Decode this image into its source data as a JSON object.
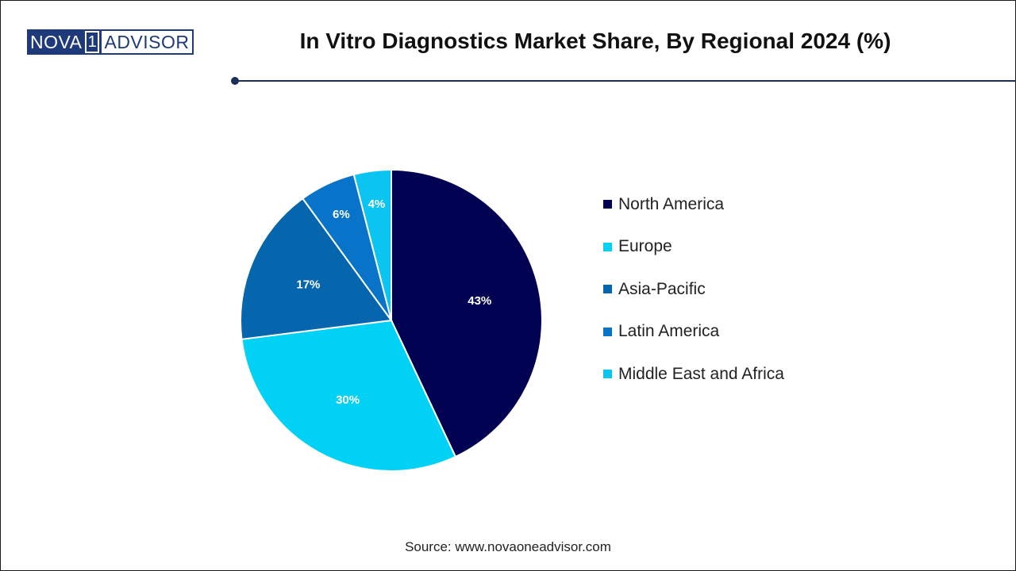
{
  "logo": {
    "part1": "NOVA",
    "part2": "1",
    "part3": "ADVISOR"
  },
  "chart_data": {
    "type": "pie",
    "title": "In Vitro Diagnostics Market Share, By Regional 2024 (%)",
    "categories": [
      "North America",
      "Europe",
      "Asia-Pacific",
      "Latin America",
      "Middle East and Africa"
    ],
    "values": [
      43,
      30,
      17,
      6,
      4
    ],
    "labels": [
      "43%",
      "30%",
      "17%",
      "6%",
      "4%"
    ],
    "colors": [
      "#020252",
      "#00d1f5",
      "#0565ad",
      "#0773c9",
      "#0cc4f2"
    ],
    "legend_position": "right",
    "start_angle": "12 o'clock, clockwise"
  },
  "source": "Source: www.novaoneadvisor.com"
}
